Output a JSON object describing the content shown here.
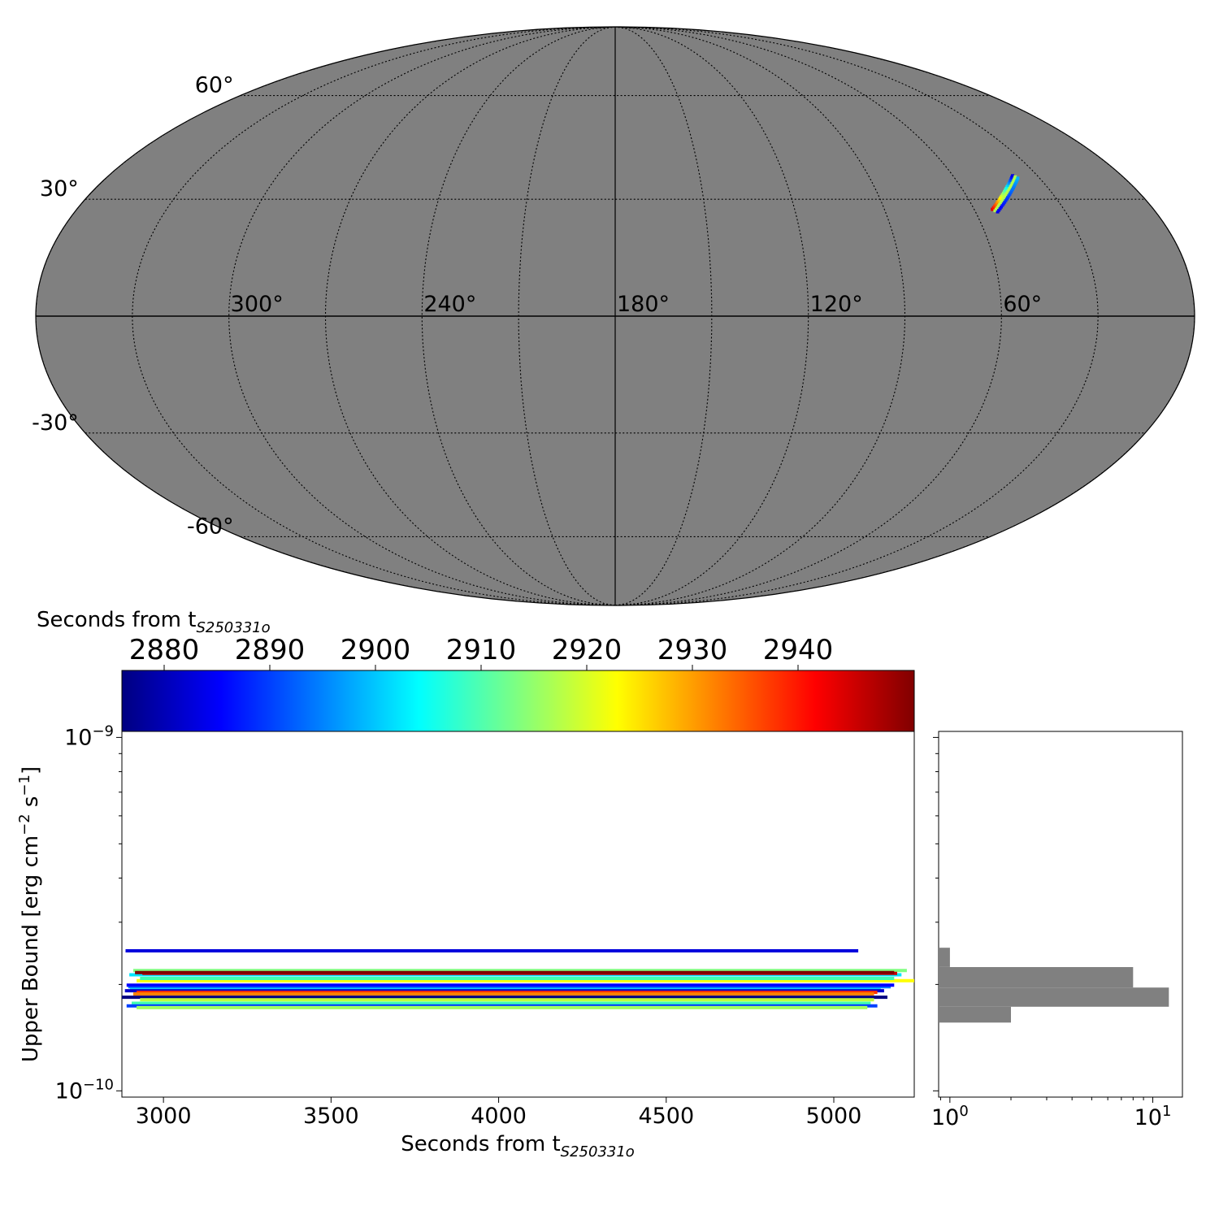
{
  "chart_data": [
    {
      "type": "sky-map",
      "projection": "mollweide",
      "background_color": "#808080",
      "meridian_labels": [
        "300°",
        "240°",
        "180°",
        "120°",
        "60°"
      ],
      "meridian_values": [
        300,
        240,
        180,
        120,
        60
      ],
      "parallel_labels": [
        "60°",
        "30°",
        "-30°",
        "-60°"
      ],
      "parallel_values": [
        60,
        30,
        -30,
        -60
      ],
      "grid": true,
      "region": {
        "ra_range": [
          38,
          53
        ],
        "dec_range": [
          27,
          36
        ],
        "colormap": "jet"
      }
    },
    {
      "type": "colorbar",
      "label": "Seconds from t",
      "label_subscript": "S250331o",
      "colormap": "jet",
      "range": [
        2876,
        2951
      ],
      "ticks": [
        2880,
        2890,
        2900,
        2910,
        2920,
        2930,
        2940
      ],
      "tick_labels": [
        "2880",
        "2890",
        "2900",
        "2910",
        "2920",
        "2930",
        "2940"
      ]
    },
    {
      "type": "range-bars",
      "xlabel": "Seconds from t",
      "xlabel_subscript": "S250331o",
      "ylabel": "Upper Bound [erg cm",
      "ylabel_exp1": "−2",
      "ylabel_mid": " s",
      "ylabel_exp2": "−1",
      "ylabel_end": "]",
      "x_ticks": [
        3000,
        3500,
        4000,
        4500,
        5000
      ],
      "x_tick_labels": [
        "3000",
        "3500",
        "4000",
        "4500",
        "5000"
      ],
      "xlim": [
        2876,
        5240
      ],
      "ylim": [
        9.6e-11,
        1.04e-09
      ],
      "y_scale": "log",
      "y_major_ticks": [
        1e-10,
        1e-09
      ],
      "y_major_base": "10",
      "y_major_exponents": [
        "−10",
        "−9"
      ],
      "bars": [
        {
          "x_start": 2887,
          "x_end": 5073,
          "y": 2.49e-10,
          "color": "#0000dd"
        },
        {
          "x_start": 2910,
          "x_end": 5218,
          "y": 2.19e-10,
          "color": "#80ff80"
        },
        {
          "x_start": 2898,
          "x_end": 5202,
          "y": 2.13e-10,
          "color": "#00e5ff"
        },
        {
          "x_start": 2937,
          "x_end": 5189,
          "y": 2.15e-10,
          "color": "#cc0000"
        },
        {
          "x_start": 2915,
          "x_end": 5180,
          "y": 2.16e-10,
          "color": "#800000"
        },
        {
          "x_start": 2920,
          "x_end": 5240,
          "y": 2.05e-10,
          "color": "#ffff00"
        },
        {
          "x_start": 2930,
          "x_end": 5180,
          "y": 2.08e-10,
          "color": "#40ffb0"
        },
        {
          "x_start": 2895,
          "x_end": 5170,
          "y": 1.97e-10,
          "color": "#0080ff"
        },
        {
          "x_start": 2890,
          "x_end": 5180,
          "y": 1.99e-10,
          "color": "#0000ff"
        },
        {
          "x_start": 2900,
          "x_end": 5140,
          "y": 1.93e-10,
          "color": "#00d0ff"
        },
        {
          "x_start": 2885,
          "x_end": 5150,
          "y": 1.92e-10,
          "color": "#0000cc"
        },
        {
          "x_start": 2920,
          "x_end": 5130,
          "y": 1.9e-10,
          "color": "#ff3000"
        },
        {
          "x_start": 2910,
          "x_end": 5120,
          "y": 1.88e-10,
          "color": "#ff8000"
        },
        {
          "x_start": 2876,
          "x_end": 5160,
          "y": 1.84e-10,
          "color": "#000080"
        },
        {
          "x_start": 2930,
          "x_end": 5120,
          "y": 1.81e-10,
          "color": "#c0ff40"
        },
        {
          "x_start": 2905,
          "x_end": 5110,
          "y": 1.77e-10,
          "color": "#40ffb0"
        },
        {
          "x_start": 2890,
          "x_end": 5130,
          "y": 1.74e-10,
          "color": "#0040ff"
        },
        {
          "x_start": 2920,
          "x_end": 5100,
          "y": 1.72e-10,
          "color": "#a0ff60"
        }
      ]
    },
    {
      "type": "histogram",
      "orientation": "horizontal",
      "x_scale": "log",
      "xlim": [
        0.88,
        14
      ],
      "x_ticks": [
        1,
        10
      ],
      "x_tick_base": "10",
      "x_tick_exponents": [
        "0",
        "1"
      ],
      "color": "#808080",
      "bins": [
        {
          "y_low": 1.56e-10,
          "y_high": 1.73e-10,
          "count": 2
        },
        {
          "y_low": 1.73e-10,
          "y_high": 1.96e-10,
          "count": 12
        },
        {
          "y_low": 1.96e-10,
          "y_high": 2.24e-10,
          "count": 8
        },
        {
          "y_low": 2.24e-10,
          "y_high": 2.54e-10,
          "count": 1
        }
      ]
    }
  ]
}
